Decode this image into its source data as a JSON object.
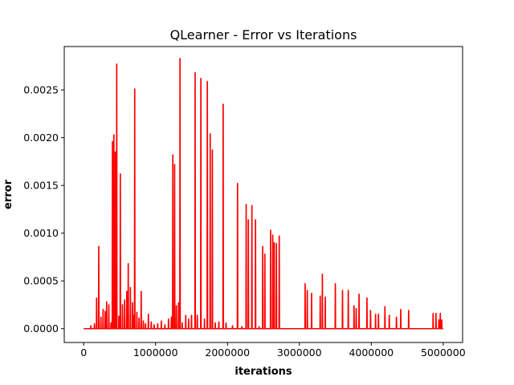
{
  "chart_data": {
    "type": "line",
    "title": "QLearner - Error vs Iterations",
    "xlabel": "iterations",
    "ylabel": "error",
    "xlim": [
      -270000,
      5270000
    ],
    "ylim": [
      -0.000145,
      0.002955
    ],
    "x_ticks": [
      {
        "value": 0,
        "label": "0"
      },
      {
        "value": 1000000,
        "label": "1000000"
      },
      {
        "value": 2000000,
        "label": "2000000"
      },
      {
        "value": 3000000,
        "label": "3000000"
      },
      {
        "value": 4000000,
        "label": "4000000"
      },
      {
        "value": 5000000,
        "label": "5000000"
      }
    ],
    "y_ticks": [
      {
        "value": 0.0,
        "label": "0.0000"
      },
      {
        "value": 0.0005,
        "label": "0.0005"
      },
      {
        "value": 0.001,
        "label": "0.0010"
      },
      {
        "value": 0.0015,
        "label": "0.0015"
      },
      {
        "value": 0.002,
        "label": "0.0020"
      },
      {
        "value": 0.0025,
        "label": "0.0025"
      }
    ],
    "grid": false,
    "legend": "none",
    "series": [
      {
        "color": "#ff0000",
        "spikes": [
          [
            100000,
            3e-05
          ],
          [
            150000,
            5e-05
          ],
          [
            180000,
            0.00032
          ],
          [
            210000,
            0.00086
          ],
          [
            240000,
            0.00012
          ],
          [
            270000,
            0.0002
          ],
          [
            300000,
            0.00018
          ],
          [
            320000,
            0.00028
          ],
          [
            350000,
            0.00025
          ],
          [
            380000,
            6e-05
          ],
          [
            400000,
            0.00196
          ],
          [
            420000,
            0.00203
          ],
          [
            440000,
            0.00185
          ],
          [
            460000,
            0.00277
          ],
          [
            490000,
            0.00013
          ],
          [
            510000,
            0.00162
          ],
          [
            540000,
            0.00025
          ],
          [
            570000,
            0.0003
          ],
          [
            600000,
            0.00039
          ],
          [
            620000,
            0.00068
          ],
          [
            650000,
            0.00043
          ],
          [
            680000,
            0.00027
          ],
          [
            700000,
            0.00014
          ],
          [
            710000,
            0.00251
          ],
          [
            740000,
            0.00017
          ],
          [
            770000,
            0.00011
          ],
          [
            800000,
            0.00039
          ],
          [
            830000,
            8e-05
          ],
          [
            860000,
            5e-05
          ],
          [
            900000,
            0.00015
          ],
          [
            940000,
            7e-05
          ],
          [
            980000,
            4e-05
          ],
          [
            1030000,
            5e-05
          ],
          [
            1080000,
            8e-05
          ],
          [
            1130000,
            4e-05
          ],
          [
            1180000,
            0.0001
          ],
          [
            1220000,
            0.00012
          ],
          [
            1240000,
            0.00182
          ],
          [
            1265000,
            0.00172
          ],
          [
            1290000,
            0.00024
          ],
          [
            1320000,
            0.00027
          ],
          [
            1340000,
            0.00283
          ],
          [
            1370000,
            6e-05
          ],
          [
            1420000,
            0.00014
          ],
          [
            1460000,
            0.0001
          ],
          [
            1500000,
            0.00014
          ],
          [
            1550000,
            0.00268
          ],
          [
            1580000,
            0.00014
          ],
          [
            1630000,
            0.00262
          ],
          [
            1680000,
            0.0001
          ],
          [
            1720000,
            0.00259
          ],
          [
            1760000,
            0.00204
          ],
          [
            1790000,
            0.00187
          ],
          [
            1830000,
            6e-05
          ],
          [
            1880000,
            7e-05
          ],
          [
            1940000,
            0.00235
          ],
          [
            1980000,
            6e-05
          ],
          [
            2070000,
            3e-05
          ],
          [
            2140000,
            0.00152
          ],
          [
            2200000,
            2e-05
          ],
          [
            2260000,
            0.0013
          ],
          [
            2290000,
            0.00114
          ],
          [
            2340000,
            0.00129
          ],
          [
            2390000,
            0.00114
          ],
          [
            2440000,
            2e-05
          ],
          [
            2490000,
            0.00086
          ],
          [
            2520000,
            0.00078
          ],
          [
            2600000,
            0.00103
          ],
          [
            2630000,
            0.00098
          ],
          [
            2650000,
            0.0009
          ],
          [
            2680000,
            0.00089
          ],
          [
            2720000,
            0.00097
          ],
          [
            3080000,
            0.00047
          ],
          [
            3110000,
            0.0004
          ],
          [
            3170000,
            0.00037
          ],
          [
            3290000,
            0.00034
          ],
          [
            3320000,
            0.00057
          ],
          [
            3360000,
            0.00033
          ],
          [
            3500000,
            0.00047
          ],
          [
            3600000,
            0.0004
          ],
          [
            3680000,
            0.0004
          ],
          [
            3760000,
            0.00024
          ],
          [
            3790000,
            0.00021
          ],
          [
            3830000,
            0.00036
          ],
          [
            3940000,
            0.00032
          ],
          [
            3990000,
            0.00019
          ],
          [
            4060000,
            0.00015
          ],
          [
            4100000,
            0.00015
          ],
          [
            4190000,
            0.00023
          ],
          [
            4250000,
            0.00014
          ],
          [
            4350000,
            0.00012
          ],
          [
            4410000,
            0.0002
          ],
          [
            4520000,
            0.00019
          ],
          [
            4860000,
            0.00016
          ],
          [
            4900000,
            0.00016
          ],
          [
            4940000,
            9e-05
          ],
          [
            4960000,
            0.00016
          ],
          [
            4980000,
            9e-05
          ]
        ]
      }
    ]
  }
}
